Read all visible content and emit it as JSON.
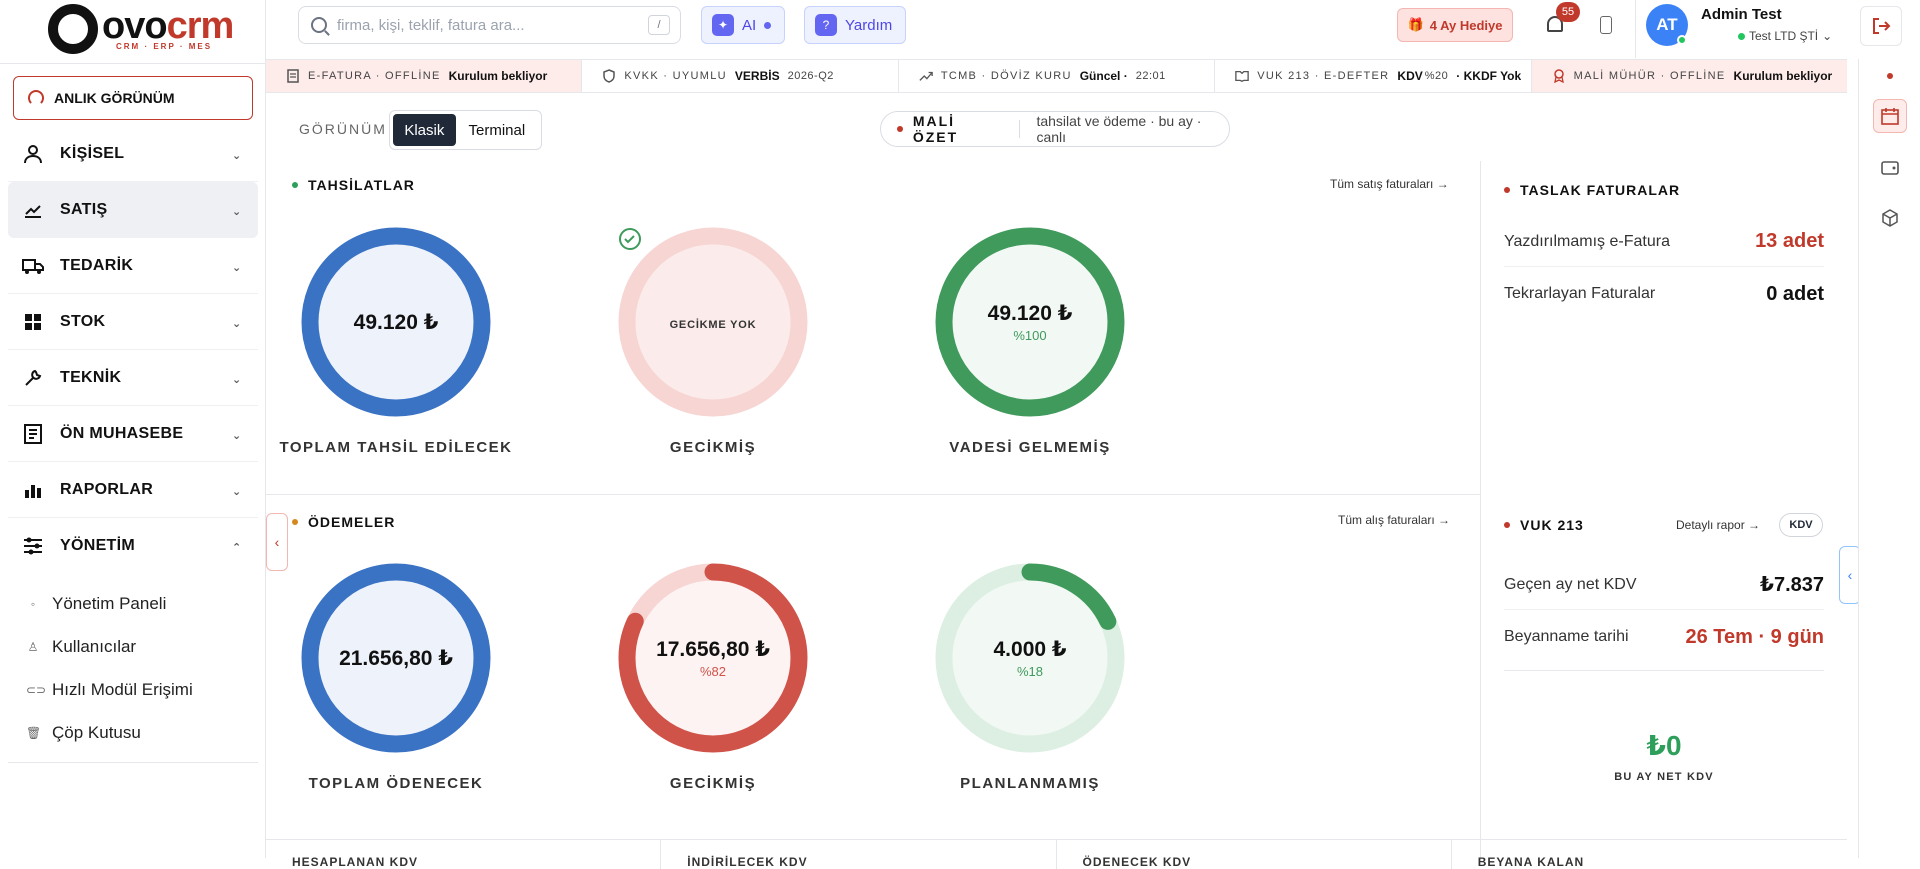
{
  "brand": {
    "word_a": "ovo",
    "word_b": "crm",
    "tagline": "CRM · ERP · MES"
  },
  "sidebar": {
    "quick_view": "ANLIK GÖRÜNÜM",
    "items": [
      {
        "label": "KİŞİSEL",
        "icon": "person-icon"
      },
      {
        "label": "SATIŞ",
        "icon": "chart-line-icon"
      },
      {
        "label": "TEDARİK",
        "icon": "truck-icon"
      },
      {
        "label": "STOK",
        "icon": "grid-icon"
      },
      {
        "label": "TEKNİK",
        "icon": "wrench-icon"
      },
      {
        "label": "ÖN MUHASEBE",
        "icon": "ledger-icon"
      },
      {
        "label": "RAPORLAR",
        "icon": "bar-chart-icon"
      },
      {
        "label": "YÖNETİM",
        "icon": "sliders-icon"
      }
    ],
    "sub_items": [
      {
        "label": "Yönetim Paneli",
        "icon": "dot-icon"
      },
      {
        "label": "Kullanıcılar",
        "icon": "user-icon"
      },
      {
        "label": "Hızlı Modül Erişimi",
        "icon": "toggle-icon"
      },
      {
        "label": "Çöp Kutusu",
        "icon": "trash-icon"
      }
    ]
  },
  "topbar": {
    "search_placeholder": "firma, kişi, teklif, fatura ara...",
    "search_shortcut": "/",
    "ai_label": "AI",
    "help_label": "Yardım",
    "gift_label": "4 Ay Hediye",
    "notification_count": "55",
    "avatar_initials": "AT",
    "user_name": "Admin Test",
    "user_company": "Test LTD ŞTİ"
  },
  "status": [
    {
      "key": "E-FATURA · OFFLİNE",
      "value": "Kurulum bekliyor",
      "icon": "document-icon",
      "warn": true
    },
    {
      "key": "KVKK · UYUMLU",
      "value": "VERBİS",
      "extra": "2026-Q2",
      "icon": "shield-icon",
      "warn": false
    },
    {
      "key": "TCMB · DÖVİZ KURU",
      "value": "Güncel ·",
      "extra": "22:01",
      "icon": "trend-icon",
      "warn": false
    },
    {
      "key": "VUK 213 · E-DEFTER",
      "value": "KDV",
      "extra": "%20",
      "value2": "· KKDF Yok",
      "icon": "book-icon",
      "warn": false
    },
    {
      "key": "MALİ MÜHÜR · OFFLİNE",
      "value": "Kurulum bekliyor",
      "icon": "seal-icon",
      "warn": true
    }
  ],
  "view": {
    "label": "GÖRÜNÜM",
    "classic": "Klasik",
    "terminal": "Terminal"
  },
  "summary": {
    "title": "MALİ ÖZET",
    "subtitle": "tahsilat ve ödeme · bu ay · canlı"
  },
  "collections": {
    "title": "TAHSİLATLAR",
    "link": "Tüm satış faturaları →",
    "color": "#2e9e5b",
    "donuts": [
      {
        "value": "49.120 ₺",
        "pct": "",
        "label": "TOPLAM TAHSİL EDİLECEK",
        "fraction": 1,
        "color": "#3a72c4",
        "track": "#3a72c4"
      },
      {
        "value": "",
        "pct": "",
        "center_note": "GECİKME YOK",
        "label": "GECİKMİŞ",
        "fraction": 0,
        "color": "#d9534f",
        "track": "#f6d5d3"
      },
      {
        "value": "49.120 ₺",
        "pct": "%100",
        "label": "VADESİ GELMEMİŞ",
        "fraction": 1,
        "color": "#3f9a5c",
        "track": "#3f9a5c"
      }
    ]
  },
  "payments": {
    "title": "ÖDEMELER",
    "link": "Tüm alış faturaları →",
    "color": "#d4891f",
    "donuts": [
      {
        "value": "21.656,80 ₺",
        "pct": "",
        "label": "TOPLAM ÖDENECEK",
        "fraction": 1,
        "color": "#3a72c4",
        "track": "#3a72c4"
      },
      {
        "value": "17.656,80 ₺",
        "pct": "%82",
        "label": "GECİKMİŞ",
        "fraction": 0.82,
        "color": "#d0534a",
        "track": "#f6d5d3"
      },
      {
        "value": "4.000 ₺",
        "pct": "%18",
        "label": "PLANLANMAMIŞ",
        "fraction": 0.18,
        "color": "#3f9a5c",
        "track": "#dcefe2"
      }
    ]
  },
  "drafts": {
    "title": "TASLAK FATURALAR",
    "rows": [
      {
        "label": "Yazdırılmamış e-Fatura",
        "value": "13 adet"
      },
      {
        "label": "Tekrarlayan Faturalar",
        "value": "0 adet"
      }
    ]
  },
  "vat": {
    "title": "VUK 213",
    "link": "Detaylı rapor →",
    "tag": "KDV",
    "rows": [
      {
        "label": "Geçen ay net KDV",
        "value": "₺7.837"
      },
      {
        "label": "Beyanname tarihi",
        "value": "26 Tem · 9 gün"
      }
    ],
    "big_value": "₺0",
    "big_label": "BU AY NET KDV"
  },
  "bottom": [
    "HESAPLANAN KDV",
    "İNDİRİLECEK KDV",
    "ÖDENECEK KDV",
    "BEYANA KALAN"
  ],
  "colors": {
    "accent": "#c0392b",
    "blue": "#3a72c4",
    "green": "#3f9a5c",
    "red": "#d0534a"
  }
}
